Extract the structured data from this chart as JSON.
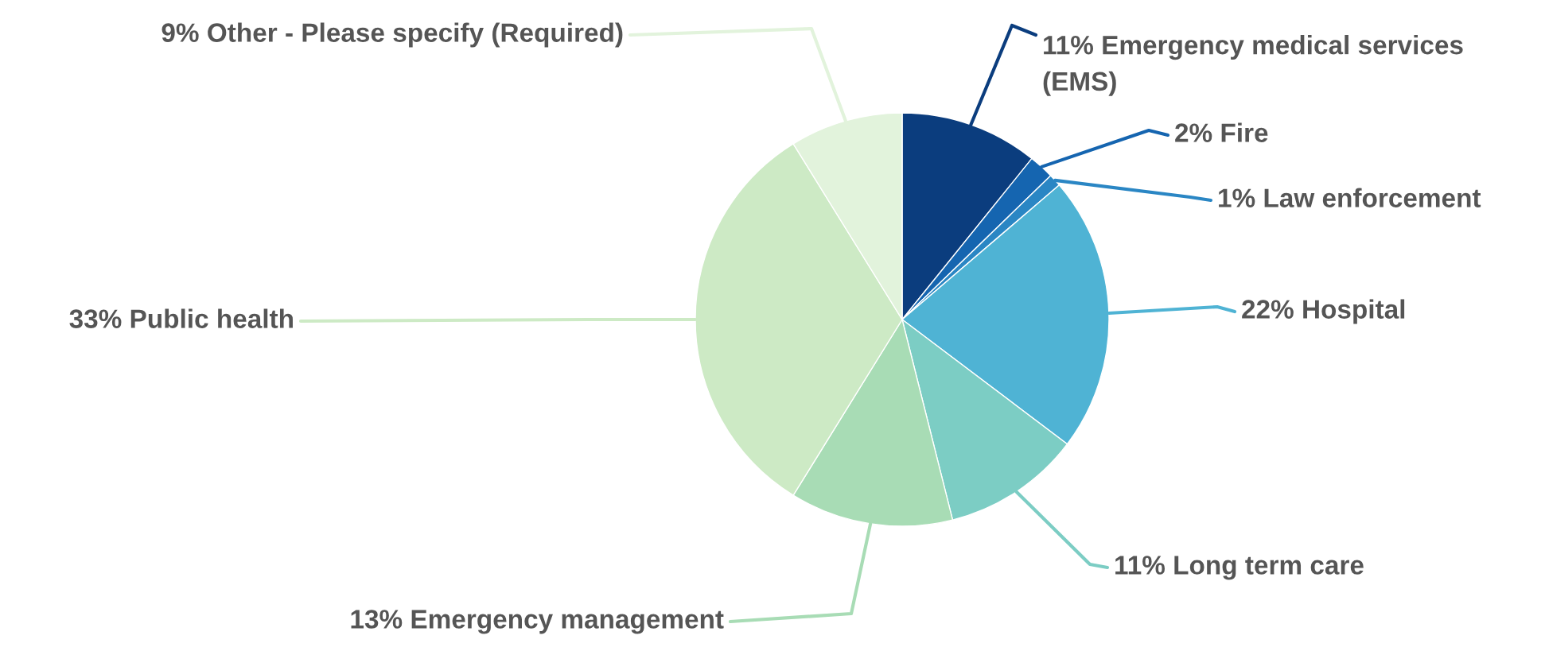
{
  "chart_data": {
    "type": "pie",
    "categories": [
      "Emergency medical services (EMS)",
      "Fire",
      "Law enforcement",
      "Hospital",
      "Long term care",
      "Emergency management",
      "Public health",
      "Other - Please specify (Required)"
    ],
    "values": [
      11,
      2,
      1,
      22,
      11,
      13,
      33,
      9
    ],
    "value_labels": [
      "11%",
      "2%",
      "1%",
      "22%",
      "11%",
      "13%",
      "33%",
      "9%"
    ],
    "colors": [
      "#0b3d7e",
      "#1565b0",
      "#2a86c4",
      "#4fb3d4",
      "#7ccdc4",
      "#a8dcb5",
      "#cdeac5",
      "#e2f3dc"
    ],
    "legend": false
  }
}
